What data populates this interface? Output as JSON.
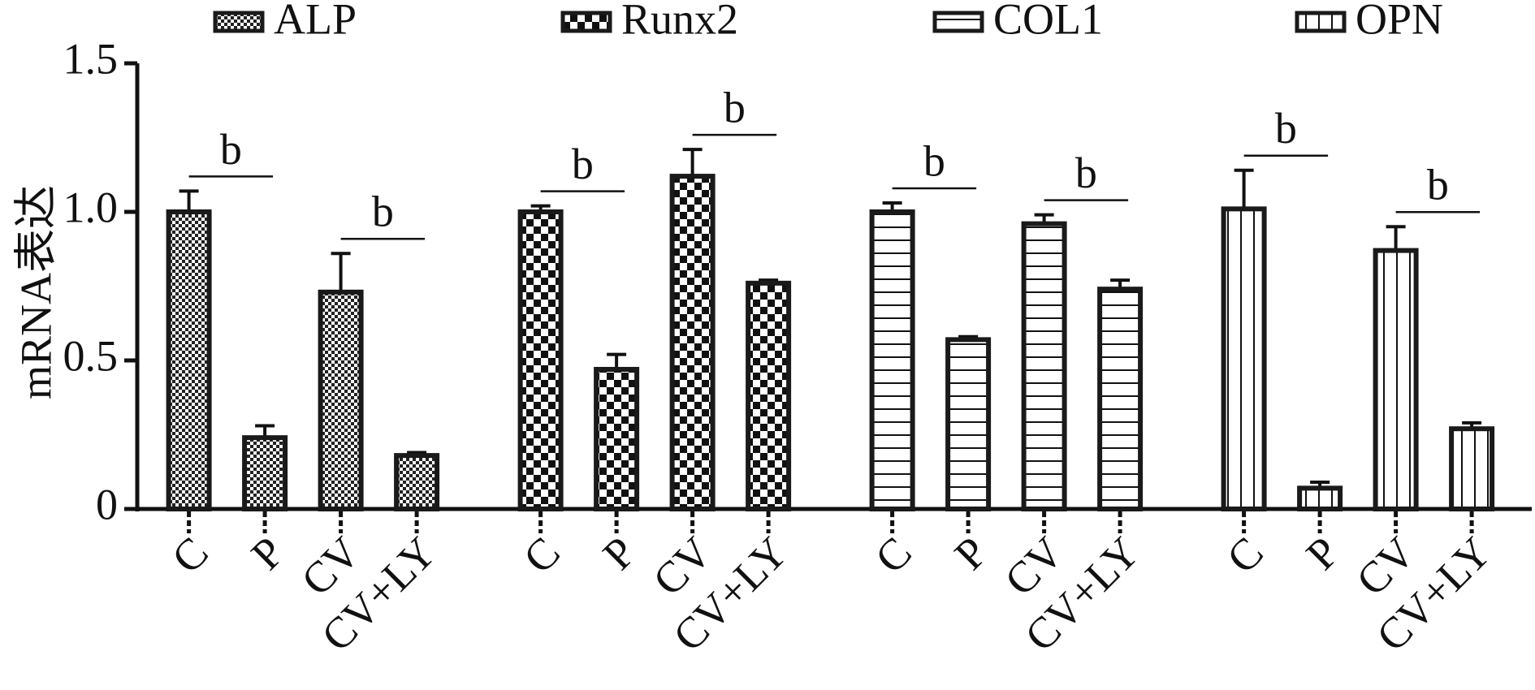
{
  "chart_data": {
    "type": "bar",
    "y_label": "mRNA表达",
    "categories": [
      "C",
      "P",
      "CV",
      "CV+LY"
    ],
    "ylim": [
      0,
      1.5
    ],
    "yticks": [
      0,
      0.5,
      {
        "value": 1,
        "label": "1.0"
      },
      1.5
    ],
    "grid": false,
    "legend": "top",
    "series": [
      {
        "name": "ALP",
        "color": "#1a1a1a",
        "pattern": "fine-check",
        "values": [
          1.0,
          0.24,
          0.73,
          0.18
        ],
        "errors": [
          0.07,
          0.04,
          0.13,
          0.01
        ],
        "annotations": [
          "b",
          "b"
        ]
      },
      {
        "name": "Runx2",
        "color": "#1a1a1a",
        "pattern": "coarse-check",
        "values": [
          1.0,
          0.47,
          1.12,
          0.76
        ],
        "errors": [
          0.02,
          0.05,
          0.09,
          0.01
        ],
        "annotations": [
          "b",
          "b"
        ]
      },
      {
        "name": "COL1",
        "color": "#1a1a1a",
        "pattern": "horizontal",
        "values": [
          1.0,
          0.57,
          0.96,
          0.74
        ],
        "errors": [
          0.03,
          0.01,
          0.03,
          0.03
        ],
        "annotations": [
          "b",
          "b"
        ]
      },
      {
        "name": "OPN",
        "color": "#1a1a1a",
        "pattern": "vertical",
        "values": [
          1.01,
          0.07,
          0.87,
          0.27
        ],
        "errors": [
          0.13,
          0.02,
          0.08,
          0.02
        ],
        "annotations": [
          "b",
          "b"
        ]
      }
    ]
  }
}
